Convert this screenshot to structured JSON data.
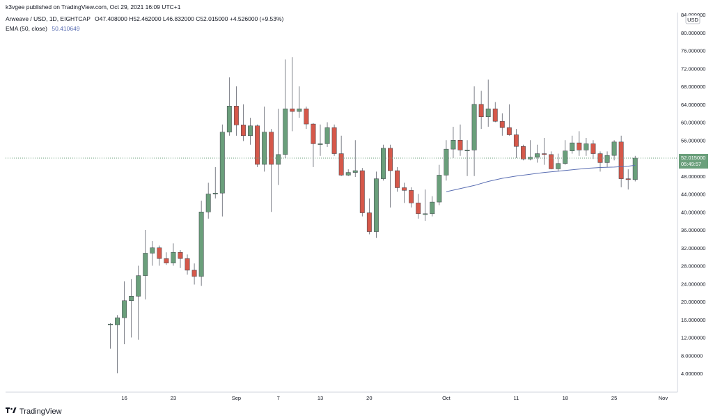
{
  "header": {
    "published": "k3vgee published on TradingView.com, Oct 29, 2021 16:09 UTC+1",
    "symbol": "Arweave / USD, 1D, EIGHTCAP",
    "ohlc": "O47.408000  H52.462000  L46.832000  C52.015000  +4.526000 (+9.53%)",
    "ema_label": "EMA (50, close)",
    "ema_value": "50.410649"
  },
  "footer": {
    "brand": "TradingView",
    "logo_icon": "tradingview-logo-icon"
  },
  "colors": {
    "up": "#6a9f7b",
    "down": "#d5584a",
    "ema": "#5b6fb3",
    "price_tag": "#6a9f7b"
  },
  "chart_data": {
    "type": "candlestick",
    "currency_label": "USD",
    "last_price_label": "52.015000",
    "countdown_label": "05:49:57",
    "y_ticks": [
      "84.000000",
      "80.000000",
      "76.000000",
      "72.000000",
      "68.000000",
      "64.000000",
      "60.000000",
      "56.000000",
      "52.000000",
      "48.000000",
      "44.000000",
      "40.000000",
      "36.000000",
      "32.000000",
      "28.000000",
      "24.000000",
      "20.000000",
      "16.000000",
      "12.000000",
      "8.000000",
      "4.000000"
    ],
    "y_tick_values": [
      84,
      80,
      76,
      72,
      68,
      64,
      60,
      56,
      52,
      48,
      44,
      40,
      36,
      32,
      28,
      24,
      20,
      16,
      12,
      8,
      4
    ],
    "ylim": [
      1,
      85
    ],
    "x_ticks": [
      {
        "label": "16",
        "day": 15
      },
      {
        "label": "23",
        "day": 22
      },
      {
        "label": "Sep",
        "day": 31
      },
      {
        "label": "7",
        "day": 37
      },
      {
        "label": "13",
        "day": 43
      },
      {
        "label": "20",
        "day": 50
      },
      {
        "label": "Oct",
        "day": 61
      },
      {
        "label": "11",
        "day": 71
      },
      {
        "label": "18",
        "day": 78
      },
      {
        "label": "25",
        "day": 85
      },
      {
        "label": "Nov",
        "day": 92
      }
    ],
    "xlim": [
      0,
      96
    ],
    "candles": [
      {
        "day": 13,
        "o": 14.8,
        "h": 15.2,
        "l": 9.5,
        "c": 15.0
      },
      {
        "day": 14,
        "o": 14.8,
        "h": 17.0,
        "l": 4.0,
        "c": 16.4
      },
      {
        "day": 15,
        "o": 16.4,
        "h": 24.5,
        "l": 10.5,
        "c": 20.2
      },
      {
        "day": 16,
        "o": 20.2,
        "h": 25.0,
        "l": 12.0,
        "c": 21.2
      },
      {
        "day": 17,
        "o": 21.2,
        "h": 28.0,
        "l": 11.5,
        "c": 25.8
      },
      {
        "day": 18,
        "o": 25.8,
        "h": 36.0,
        "l": 20.5,
        "c": 30.8
      },
      {
        "day": 19,
        "o": 30.8,
        "h": 33.5,
        "l": 28.0,
        "c": 32.0
      },
      {
        "day": 20,
        "o": 32.0,
        "h": 32.5,
        "l": 28.0,
        "c": 29.6
      },
      {
        "day": 21,
        "o": 29.6,
        "h": 31.0,
        "l": 28.2,
        "c": 28.6
      },
      {
        "day": 22,
        "o": 28.6,
        "h": 33.0,
        "l": 28.0,
        "c": 31.0
      },
      {
        "day": 23,
        "o": 31.0,
        "h": 31.5,
        "l": 27.5,
        "c": 29.6
      },
      {
        "day": 24,
        "o": 29.6,
        "h": 30.5,
        "l": 26.0,
        "c": 27.0
      },
      {
        "day": 25,
        "o": 27.0,
        "h": 28.5,
        "l": 23.8,
        "c": 25.6
      },
      {
        "day": 26,
        "o": 25.6,
        "h": 42.5,
        "l": 23.5,
        "c": 40.0
      },
      {
        "day": 27,
        "o": 40.0,
        "h": 46.5,
        "l": 38.5,
        "c": 44.0
      },
      {
        "day": 28,
        "o": 44.0,
        "h": 50.0,
        "l": 43.0,
        "c": 44.2
      },
      {
        "day": 29,
        "o": 44.2,
        "h": 59.5,
        "l": 39.0,
        "c": 57.8
      },
      {
        "day": 30,
        "o": 57.8,
        "h": 70.0,
        "l": 57.0,
        "c": 63.6
      },
      {
        "day": 31,
        "o": 63.6,
        "h": 68.0,
        "l": 57.0,
        "c": 59.4
      },
      {
        "day": 32,
        "o": 59.4,
        "h": 64.0,
        "l": 55.8,
        "c": 57.0
      },
      {
        "day": 33,
        "o": 57.0,
        "h": 61.0,
        "l": 55.0,
        "c": 59.2
      },
      {
        "day": 34,
        "o": 59.2,
        "h": 59.5,
        "l": 50.0,
        "c": 50.6
      },
      {
        "day": 35,
        "o": 50.6,
        "h": 63.5,
        "l": 49.0,
        "c": 57.8
      },
      {
        "day": 36,
        "o": 57.8,
        "h": 58.5,
        "l": 40.0,
        "c": 50.6
      },
      {
        "day": 37,
        "o": 50.6,
        "h": 63.0,
        "l": 46.0,
        "c": 52.8
      },
      {
        "day": 38,
        "o": 52.8,
        "h": 74.0,
        "l": 52.0,
        "c": 63.0
      },
      {
        "day": 39,
        "o": 63.0,
        "h": 74.5,
        "l": 58.0,
        "c": 62.4
      },
      {
        "day": 40,
        "o": 62.4,
        "h": 68.0,
        "l": 61.0,
        "c": 63.0
      },
      {
        "day": 41,
        "o": 63.0,
        "h": 63.5,
        "l": 58.5,
        "c": 59.6
      },
      {
        "day": 42,
        "o": 59.6,
        "h": 59.8,
        "l": 50.0,
        "c": 55.2
      },
      {
        "day": 43,
        "o": 55.2,
        "h": 59.5,
        "l": 52.5,
        "c": 55.2
      },
      {
        "day": 44,
        "o": 55.2,
        "h": 60.0,
        "l": 54.5,
        "c": 58.8
      },
      {
        "day": 45,
        "o": 58.8,
        "h": 59.5,
        "l": 52.5,
        "c": 53.0
      },
      {
        "day": 46,
        "o": 53.0,
        "h": 57.0,
        "l": 48.0,
        "c": 48.2
      },
      {
        "day": 47,
        "o": 48.2,
        "h": 49.5,
        "l": 48.0,
        "c": 48.8
      },
      {
        "day": 48,
        "o": 48.8,
        "h": 56.0,
        "l": 47.8,
        "c": 49.2
      },
      {
        "day": 49,
        "o": 49.2,
        "h": 49.8,
        "l": 39.0,
        "c": 39.8
      },
      {
        "day": 50,
        "o": 39.8,
        "h": 43.0,
        "l": 35.0,
        "c": 35.6
      },
      {
        "day": 51,
        "o": 35.6,
        "h": 49.0,
        "l": 34.2,
        "c": 47.4
      },
      {
        "day": 52,
        "o": 47.4,
        "h": 55.0,
        "l": 47.0,
        "c": 54.2
      },
      {
        "day": 53,
        "o": 54.2,
        "h": 55.0,
        "l": 41.0,
        "c": 49.2
      },
      {
        "day": 54,
        "o": 49.2,
        "h": 50.0,
        "l": 44.5,
        "c": 45.4
      },
      {
        "day": 55,
        "o": 45.4,
        "h": 46.5,
        "l": 42.0,
        "c": 44.8
      },
      {
        "day": 56,
        "o": 44.8,
        "h": 45.5,
        "l": 41.0,
        "c": 42.0
      },
      {
        "day": 57,
        "o": 42.0,
        "h": 44.0,
        "l": 38.5,
        "c": 39.6
      },
      {
        "day": 58,
        "o": 39.6,
        "h": 45.0,
        "l": 38.0,
        "c": 39.6
      },
      {
        "day": 59,
        "o": 39.6,
        "h": 43.5,
        "l": 39.0,
        "c": 42.2
      },
      {
        "day": 60,
        "o": 42.2,
        "h": 50.5,
        "l": 41.5,
        "c": 48.2
      },
      {
        "day": 61,
        "o": 48.2,
        "h": 56.0,
        "l": 47.0,
        "c": 54.0
      },
      {
        "day": 62,
        "o": 54.0,
        "h": 59.0,
        "l": 52.0,
        "c": 56.0
      },
      {
        "day": 63,
        "o": 56.0,
        "h": 59.5,
        "l": 52.5,
        "c": 53.8
      },
      {
        "day": 64,
        "o": 53.8,
        "h": 56.0,
        "l": 48.0,
        "c": 53.8
      },
      {
        "day": 65,
        "o": 53.8,
        "h": 68.0,
        "l": 48.0,
        "c": 64.0
      },
      {
        "day": 66,
        "o": 64.0,
        "h": 67.0,
        "l": 58.5,
        "c": 61.2
      },
      {
        "day": 67,
        "o": 61.2,
        "h": 69.5,
        "l": 59.0,
        "c": 63.0
      },
      {
        "day": 68,
        "o": 63.0,
        "h": 64.5,
        "l": 60.0,
        "c": 60.2
      },
      {
        "day": 69,
        "o": 60.2,
        "h": 62.0,
        "l": 57.0,
        "c": 58.8
      },
      {
        "day": 70,
        "o": 58.8,
        "h": 64.0,
        "l": 57.0,
        "c": 57.2
      },
      {
        "day": 71,
        "o": 57.2,
        "h": 58.5,
        "l": 52.0,
        "c": 54.6
      },
      {
        "day": 72,
        "o": 54.6,
        "h": 55.0,
        "l": 51.5,
        "c": 51.8
      },
      {
        "day": 73,
        "o": 51.8,
        "h": 56.0,
        "l": 51.5,
        "c": 52.2
      },
      {
        "day": 74,
        "o": 52.2,
        "h": 55.0,
        "l": 51.0,
        "c": 53.0
      },
      {
        "day": 75,
        "o": 53.0,
        "h": 56.5,
        "l": 50.5,
        "c": 52.8
      },
      {
        "day": 76,
        "o": 52.8,
        "h": 53.5,
        "l": 49.5,
        "c": 49.6
      },
      {
        "day": 77,
        "o": 49.6,
        "h": 53.0,
        "l": 49.0,
        "c": 50.8
      },
      {
        "day": 78,
        "o": 50.8,
        "h": 56.0,
        "l": 50.5,
        "c": 53.6
      },
      {
        "day": 79,
        "o": 53.6,
        "h": 57.0,
        "l": 53.0,
        "c": 55.4
      },
      {
        "day": 80,
        "o": 55.4,
        "h": 58.0,
        "l": 52.5,
        "c": 53.8
      },
      {
        "day": 81,
        "o": 53.8,
        "h": 56.5,
        "l": 52.5,
        "c": 55.2
      },
      {
        "day": 82,
        "o": 55.2,
        "h": 56.0,
        "l": 51.8,
        "c": 53.0
      },
      {
        "day": 83,
        "o": 53.0,
        "h": 53.5,
        "l": 49.0,
        "c": 51.0
      },
      {
        "day": 84,
        "o": 51.0,
        "h": 53.5,
        "l": 50.0,
        "c": 52.6
      },
      {
        "day": 85,
        "o": 52.6,
        "h": 56.0,
        "l": 51.5,
        "c": 55.6
      },
      {
        "day": 86,
        "o": 55.6,
        "h": 57.0,
        "l": 45.5,
        "c": 47.4
      },
      {
        "day": 87,
        "o": 47.4,
        "h": 49.5,
        "l": 45.0,
        "c": 47.2
      },
      {
        "day": 88,
        "o": 47.2,
        "h": 52.5,
        "l": 46.8,
        "c": 52.0
      }
    ],
    "ema": [
      {
        "day": 61,
        "v": 44.5
      },
      {
        "day": 63,
        "v": 45.2
      },
      {
        "day": 65,
        "v": 45.9
      },
      {
        "day": 67,
        "v": 46.8
      },
      {
        "day": 69,
        "v": 47.5
      },
      {
        "day": 71,
        "v": 48.0
      },
      {
        "day": 73,
        "v": 48.4
      },
      {
        "day": 75,
        "v": 48.8
      },
      {
        "day": 77,
        "v": 49.1
      },
      {
        "day": 79,
        "v": 49.4
      },
      {
        "day": 81,
        "v": 49.7
      },
      {
        "day": 83,
        "v": 49.9
      },
      {
        "day": 85,
        "v": 50.0
      },
      {
        "day": 87,
        "v": 50.2
      },
      {
        "day": 88,
        "v": 50.4
      }
    ]
  }
}
